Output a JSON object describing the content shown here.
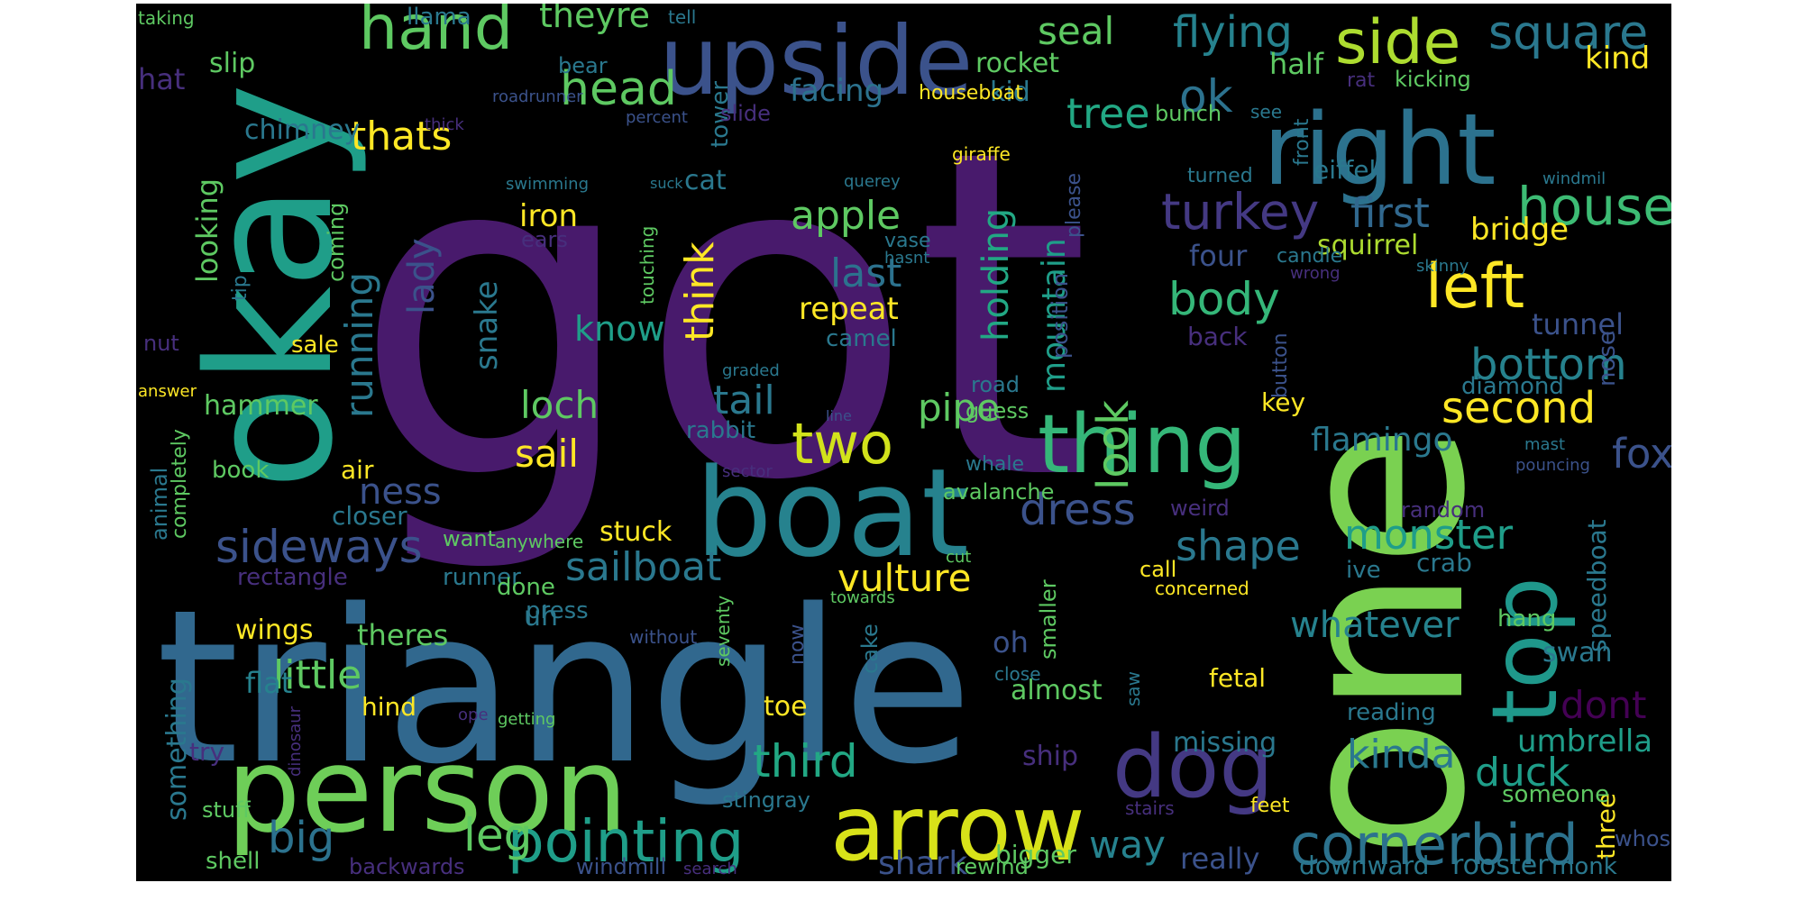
{
  "palette": {
    "deep_purple": "#440154",
    "purple": "#472f7d",
    "indigo": "#3b528b",
    "blue": "#2c728e",
    "teal": "#21918c",
    "sea": "#28ae80",
    "green": "#5ec962",
    "lime": "#addc30",
    "yellow": "#fde725"
  },
  "words": [
    {
      "text": "got",
      "color": "#481a6c"
    },
    {
      "text": "triangle",
      "color": "#31688e"
    },
    {
      "text": "one",
      "color": "#7ad151"
    },
    {
      "text": "okay",
      "color": "#1f9e89"
    },
    {
      "text": "boat",
      "color": "#26828e"
    },
    {
      "text": "person",
      "color": "#6ece58"
    },
    {
      "text": "upside",
      "color": "#3b528b"
    },
    {
      "text": "right",
      "color": "#2c728e"
    },
    {
      "text": "top",
      "color": "#1f988b"
    },
    {
      "text": "thing",
      "color": "#35b779"
    },
    {
      "text": "arrow",
      "color": "#d8e219"
    },
    {
      "text": "dog",
      "color": "#443983"
    },
    {
      "text": "hand",
      "color": "#5ec962"
    },
    {
      "text": "side",
      "color": "#addc30"
    },
    {
      "text": "left",
      "color": "#fde725"
    },
    {
      "text": "house",
      "color": "#3dbc74"
    },
    {
      "text": "square",
      "color": "#2a788e"
    },
    {
      "text": "pointing",
      "color": "#1f9e89"
    },
    {
      "text": "cornerbird",
      "color": "#2c728e"
    },
    {
      "text": "sideways",
      "color": "#3b528b"
    },
    {
      "text": "two",
      "color": "#d2e21b"
    },
    {
      "text": "head",
      "color": "#5ec962"
    },
    {
      "text": "ok",
      "color": "#2c728e"
    },
    {
      "text": "flying",
      "color": "#26828e"
    },
    {
      "text": "theyre",
      "color": "#5ec962"
    },
    {
      "text": "turkey",
      "color": "#443983"
    },
    {
      "text": "first",
      "color": "#31688e"
    },
    {
      "text": "tree",
      "color": "#22a884"
    },
    {
      "text": "body",
      "color": "#35b779"
    },
    {
      "text": "second",
      "color": "#fde725"
    },
    {
      "text": "bottom",
      "color": "#26828e"
    },
    {
      "text": "fox",
      "color": "#3b528b"
    },
    {
      "text": "dress",
      "color": "#3b528b"
    },
    {
      "text": "look",
      "color": "#5ec962"
    },
    {
      "text": "shape",
      "color": "#2a788e"
    },
    {
      "text": "monster",
      "color": "#1f9e89"
    },
    {
      "text": "whatever",
      "color": "#26828e"
    },
    {
      "text": "sailboat",
      "color": "#2a788e"
    },
    {
      "text": "vulture",
      "color": "#fde725"
    },
    {
      "text": "third",
      "color": "#22a884"
    },
    {
      "text": "kinda",
      "color": "#2a788e"
    },
    {
      "text": "duck",
      "color": "#1f9e89"
    },
    {
      "text": "dont",
      "color": "#440154"
    },
    {
      "text": "umbrella",
      "color": "#1f9e89"
    },
    {
      "text": "leg",
      "color": "#5ec962"
    },
    {
      "text": "big",
      "color": "#2c728e"
    },
    {
      "text": "little",
      "color": "#5ec962"
    },
    {
      "text": "way",
      "color": "#26828e"
    },
    {
      "text": "really",
      "color": "#3b528b"
    },
    {
      "text": "shark",
      "color": "#3b528b"
    },
    {
      "text": "seal",
      "color": "#5ec962"
    },
    {
      "text": "thats",
      "color": "#fde725"
    },
    {
      "text": "running",
      "color": "#2a788e"
    },
    {
      "text": "lady",
      "color": "#3b528b"
    },
    {
      "text": "apple",
      "color": "#5ec962"
    },
    {
      "text": "last",
      "color": "#2c728e"
    },
    {
      "text": "think",
      "color": "#fde725"
    },
    {
      "text": "holding",
      "color": "#22a884"
    },
    {
      "text": "mountain",
      "color": "#1f9e89"
    },
    {
      "text": "know",
      "color": "#1f9e89"
    },
    {
      "text": "loch",
      "color": "#5ec962"
    },
    {
      "text": "sail",
      "color": "#fde725"
    },
    {
      "text": "tail",
      "color": "#2a788e"
    },
    {
      "text": "pipe",
      "color": "#5ec962"
    },
    {
      "text": "ness",
      "color": "#3b528b"
    },
    {
      "text": "snake",
      "color": "#2a788e"
    },
    {
      "text": "flamingo",
      "color": "#2a788e"
    },
    {
      "text": "squirrel",
      "color": "#addc30"
    },
    {
      "text": "bridge",
      "color": "#fde725"
    },
    {
      "text": "tunnel",
      "color": "#3b528b"
    },
    {
      "text": "four",
      "color": "#3b528b"
    },
    {
      "text": "facing",
      "color": "#2c728e"
    },
    {
      "text": "kind",
      "color": "#fde725"
    },
    {
      "text": "half",
      "color": "#5ec962"
    },
    {
      "text": "rocket",
      "color": "#5ec962"
    },
    {
      "text": "kid",
      "color": "#2a788e"
    },
    {
      "text": "houseboat",
      "color": "#fde725"
    },
    {
      "text": "chimney",
      "color": "#2a788e"
    },
    {
      "text": "looking",
      "color": "#5ec962"
    },
    {
      "text": "slip",
      "color": "#5ec962"
    },
    {
      "text": "hat",
      "color": "#472f7d"
    },
    {
      "text": "llama",
      "color": "#2a788e"
    },
    {
      "text": "taking",
      "color": "#5ec962"
    },
    {
      "text": "bear",
      "color": "#2a788e"
    },
    {
      "text": "tell",
      "color": "#2a788e"
    },
    {
      "text": "iron",
      "color": "#fde725"
    },
    {
      "text": "ears",
      "color": "#472f7d"
    },
    {
      "text": "repeat",
      "color": "#fde725"
    },
    {
      "text": "camel",
      "color": "#2a788e"
    },
    {
      "text": "hammer",
      "color": "#5ec962"
    },
    {
      "text": "air",
      "color": "#fde725"
    },
    {
      "text": "wings",
      "color": "#fde725"
    },
    {
      "text": "theres",
      "color": "#5ec962"
    },
    {
      "text": "flat",
      "color": "#26828e"
    },
    {
      "text": "hind",
      "color": "#fde725"
    },
    {
      "text": "stuck",
      "color": "#fde725"
    },
    {
      "text": "uh",
      "color": "#2a788e"
    },
    {
      "text": "oh",
      "color": "#3b528b"
    },
    {
      "text": "almost",
      "color": "#5ec962"
    },
    {
      "text": "toe",
      "color": "#fde725"
    },
    {
      "text": "ship",
      "color": "#472f7d"
    },
    {
      "text": "cat",
      "color": "#2a788e"
    },
    {
      "text": "tower",
      "color": "#2a788e"
    },
    {
      "text": "slide",
      "color": "#472f7d"
    },
    {
      "text": "vase",
      "color": "#2a788e"
    },
    {
      "text": "rabbit",
      "color": "#2a788e"
    },
    {
      "text": "road",
      "color": "#2a788e"
    },
    {
      "text": "guess",
      "color": "#5ec962"
    },
    {
      "text": "whale",
      "color": "#2a788e"
    },
    {
      "text": "key",
      "color": "#fde725"
    },
    {
      "text": "button",
      "color": "#3b528b"
    },
    {
      "text": "diamond",
      "color": "#2a788e"
    },
    {
      "text": "nose",
      "color": "#3b528b"
    },
    {
      "text": "back",
      "color": "#472f7d"
    },
    {
      "text": "eiffel",
      "color": "#2a788e"
    },
    {
      "text": "turned",
      "color": "#2a788e"
    },
    {
      "text": "front",
      "color": "#2a788e"
    },
    {
      "text": "bunch",
      "color": "#5ec962"
    },
    {
      "text": "kicking",
      "color": "#5ec962"
    },
    {
      "text": "rat",
      "color": "#472f7d"
    },
    {
      "text": "see",
      "color": "#2a788e"
    },
    {
      "text": "giraffe",
      "color": "#fde725"
    },
    {
      "text": "candle",
      "color": "#2a788e"
    },
    {
      "text": "wrong",
      "color": "#472f7d"
    },
    {
      "text": "skinny",
      "color": "#2a788e"
    },
    {
      "text": "windmil",
      "color": "#2a788e"
    },
    {
      "text": "querey",
      "color": "#2a788e"
    },
    {
      "text": "please",
      "color": "#3b528b"
    },
    {
      "text": "position",
      "color": "#3b528b"
    },
    {
      "text": "touching",
      "color": "#5ec962"
    },
    {
      "text": "hasnt",
      "color": "#2a788e"
    },
    {
      "text": "swimming",
      "color": "#2a788e"
    },
    {
      "text": "suck",
      "color": "#2a788e"
    },
    {
      "text": "thick",
      "color": "#472f7d"
    },
    {
      "text": "percent",
      "color": "#3b528b"
    },
    {
      "text": "roadrunner",
      "color": "#3b528b"
    },
    {
      "text": "tip",
      "color": "#2a788e"
    },
    {
      "text": "coming",
      "color": "#5ec962"
    },
    {
      "text": "nut",
      "color": "#472f7d"
    },
    {
      "text": "sale",
      "color": "#fde725"
    },
    {
      "text": "answer",
      "color": "#fde725"
    },
    {
      "text": "graded",
      "color": "#2a788e"
    },
    {
      "text": "line",
      "color": "#3b528b"
    },
    {
      "text": "book",
      "color": "#5ec962"
    },
    {
      "text": "animal",
      "color": "#2a788e"
    },
    {
      "text": "completely",
      "color": "#5ec962"
    },
    {
      "text": "closer",
      "color": "#2a788e"
    },
    {
      "text": "want",
      "color": "#5ec962"
    },
    {
      "text": "anywhere",
      "color": "#5ec962"
    },
    {
      "text": "rectangle",
      "color": "#472f7d"
    },
    {
      "text": "runner",
      "color": "#2a788e"
    },
    {
      "text": "done",
      "color": "#5ec962"
    },
    {
      "text": "press",
      "color": "#2a788e"
    },
    {
      "text": "without",
      "color": "#3b528b"
    },
    {
      "text": "seventy",
      "color": "#5ec962"
    },
    {
      "text": "now",
      "color": "#3b528b"
    },
    {
      "text": "cake",
      "color": "#2a788e"
    },
    {
      "text": "towards",
      "color": "#5ec962"
    },
    {
      "text": "cut",
      "color": "#5ec962"
    },
    {
      "text": "smaller",
      "color": "#5ec962"
    },
    {
      "text": "close",
      "color": "#2a788e"
    },
    {
      "text": "call",
      "color": "#fde725"
    },
    {
      "text": "concerned",
      "color": "#fde725"
    },
    {
      "text": "saw",
      "color": "#2a788e"
    },
    {
      "text": "fetal",
      "color": "#fde725"
    },
    {
      "text": "missing",
      "color": "#2a788e"
    },
    {
      "text": "reading",
      "color": "#2a788e"
    },
    {
      "text": "feet",
      "color": "#fde725"
    },
    {
      "text": "ive",
      "color": "#2a788e"
    },
    {
      "text": "crab",
      "color": "#2a788e"
    },
    {
      "text": "random",
      "color": "#472f7d"
    },
    {
      "text": "weird",
      "color": "#472f7d"
    },
    {
      "text": "avalanche",
      "color": "#5ec962"
    },
    {
      "text": "sector",
      "color": "#472f7d"
    },
    {
      "text": "swan",
      "color": "#2a788e"
    },
    {
      "text": "hang",
      "color": "#5ec962"
    },
    {
      "text": "mast",
      "color": "#2a788e"
    },
    {
      "text": "pouncing",
      "color": "#3b528b"
    },
    {
      "text": "speedboat",
      "color": "#2a788e"
    },
    {
      "text": "three",
      "color": "#fde725"
    },
    {
      "text": "someone",
      "color": "#5ec962"
    },
    {
      "text": "whos",
      "color": "#3b528b"
    },
    {
      "text": "monk",
      "color": "#2a788e"
    },
    {
      "text": "rooster",
      "color": "#2a788e"
    },
    {
      "text": "downward",
      "color": "#2a788e"
    },
    {
      "text": "rewind",
      "color": "#5ec962"
    },
    {
      "text": "bigger",
      "color": "#5ec962"
    },
    {
      "text": "stairs",
      "color": "#472f7d"
    },
    {
      "text": "windmill",
      "color": "#3b528b"
    },
    {
      "text": "search",
      "color": "#472f7d"
    },
    {
      "text": "stingray",
      "color": "#2a788e"
    },
    {
      "text": "backwards",
      "color": "#472f7d"
    },
    {
      "text": "shell",
      "color": "#5ec962"
    },
    {
      "text": "stuff",
      "color": "#5ec962"
    },
    {
      "text": "something",
      "color": "#2a788e"
    },
    {
      "text": "try",
      "color": "#472f7d"
    },
    {
      "text": "dinosaur",
      "color": "#472f7d"
    },
    {
      "text": "ope",
      "color": "#472f7d"
    },
    {
      "text": "getting",
      "color": "#5ec962"
    }
  ]
}
